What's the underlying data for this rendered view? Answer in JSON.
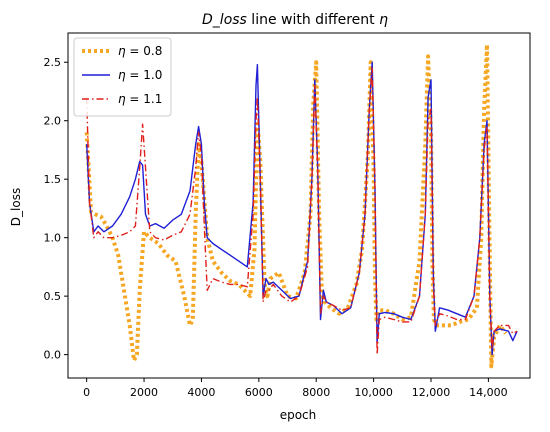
{
  "chart_data": {
    "type": "line",
    "title": "D_loss line with different η",
    "xlabel": "epoch",
    "ylabel": "D_loss",
    "xlim": [
      -650,
      15450
    ],
    "ylim": [
      -0.2,
      2.75
    ],
    "x_ticks": [
      0,
      2000,
      4000,
      6000,
      8000,
      10000,
      12000,
      14000
    ],
    "x_tick_labels": [
      "0",
      "2000",
      "4000",
      "6000",
      "8000",
      "10,000",
      "12,000",
      "14,000"
    ],
    "y_ticks": [
      0.0,
      0.5,
      1.0,
      1.5,
      2.0,
      2.5
    ],
    "y_tick_labels": [
      "0.0",
      "0.5",
      "1.0",
      "1.5",
      "2.0",
      "2.5"
    ],
    "grid": false,
    "legend_position": "upper-left",
    "series": [
      {
        "name": "η = 0.8",
        "legend_prefix": "η",
        "legend_value": "= 0.8",
        "color": "#f5a623",
        "style": "dotted",
        "x": [
          0,
          150,
          300,
          500,
          700,
          900,
          1100,
          1300,
          1500,
          1650,
          1750,
          1850,
          2000,
          2200,
          2500,
          2800,
          3100,
          3400,
          3600,
          3700,
          3800,
          3900,
          4000,
          4200,
          4400,
          4700,
          5000,
          5300,
          5500,
          5700,
          5850,
          5950,
          6050,
          6200,
          6300,
          6400,
          6700,
          7000,
          7300,
          7600,
          7800,
          7900,
          8000,
          8100,
          8200,
          8300,
          8500,
          8800,
          9100,
          9400,
          9600,
          9800,
          9900,
          10000,
          10050,
          10100,
          10200,
          10400,
          10700,
          11000,
          11300,
          11600,
          11800,
          11900,
          12000,
          12050,
          12100,
          12200,
          12400,
          12700,
          13000,
          13300,
          13600,
          13750,
          13850,
          13950,
          14050,
          14100,
          14200,
          14400,
          14600
        ],
        "y": [
          1.9,
          1.22,
          1.2,
          1.18,
          1.1,
          1.0,
          0.85,
          0.55,
          0.25,
          -0.05,
          0.0,
          0.55,
          1.05,
          1.0,
          0.95,
          0.85,
          0.8,
          0.5,
          0.25,
          0.3,
          1.2,
          1.8,
          1.65,
          1.0,
          0.8,
          0.7,
          0.63,
          0.6,
          0.55,
          0.5,
          0.9,
          2.0,
          1.65,
          0.6,
          0.5,
          0.65,
          0.7,
          0.5,
          0.48,
          0.7,
          1.2,
          2.15,
          2.5,
          1.2,
          0.5,
          0.45,
          0.4,
          0.35,
          0.4,
          0.6,
          0.9,
          1.7,
          2.5,
          1.6,
          0.65,
          0.3,
          0.38,
          0.38,
          0.35,
          0.3,
          0.32,
          0.8,
          1.8,
          2.55,
          1.9,
          0.8,
          0.3,
          0.25,
          0.25,
          0.25,
          0.28,
          0.3,
          0.4,
          1.0,
          2.1,
          2.65,
          0.8,
          -0.1,
          0.15,
          0.25,
          0.18
        ]
      },
      {
        "name": "η = 1.0",
        "legend_prefix": "η",
        "legend_value": "= 1.0",
        "color": "#1f1fd6",
        "style": "solid",
        "x": [
          0,
          100,
          250,
          400,
          600,
          900,
          1200,
          1500,
          1700,
          1850,
          1950,
          2050,
          2200,
          2400,
          2700,
          3000,
          3300,
          3600,
          3800,
          3900,
          4000,
          4100,
          4200,
          4400,
          4700,
          5000,
          5300,
          5600,
          5800,
          5900,
          5950,
          6050,
          6150,
          6250,
          6350,
          6500,
          6800,
          7100,
          7400,
          7700,
          7850,
          7950,
          8050,
          8150,
          8250,
          8350,
          8600,
          8900,
          9200,
          9500,
          9700,
          9850,
          9950,
          10050,
          10120,
          10200,
          10400,
          10700,
          11000,
          11300,
          11600,
          11800,
          11900,
          12000,
          12080,
          12150,
          12300,
          12600,
          12900,
          13200,
          13500,
          13700,
          13850,
          13950,
          14050,
          14130,
          14200,
          14400,
          14700,
          14850,
          15000
        ],
        "y": [
          1.8,
          1.3,
          1.05,
          1.1,
          1.05,
          1.1,
          1.2,
          1.35,
          1.5,
          1.65,
          1.62,
          1.2,
          1.1,
          1.12,
          1.08,
          1.15,
          1.2,
          1.4,
          1.8,
          1.95,
          1.8,
          1.3,
          1.0,
          0.95,
          0.9,
          0.85,
          0.8,
          0.75,
          1.3,
          2.3,
          2.48,
          1.5,
          0.5,
          0.65,
          0.6,
          0.62,
          0.55,
          0.48,
          0.5,
          0.8,
          1.5,
          2.35,
          1.6,
          0.3,
          0.55,
          0.45,
          0.42,
          0.35,
          0.4,
          0.7,
          1.2,
          2.1,
          2.5,
          1.4,
          0.1,
          0.35,
          0.36,
          0.35,
          0.32,
          0.3,
          0.5,
          1.2,
          2.2,
          2.35,
          0.7,
          0.2,
          0.4,
          0.38,
          0.35,
          0.32,
          0.5,
          1.0,
          1.8,
          2.0,
          0.5,
          0.0,
          0.2,
          0.22,
          0.2,
          0.12,
          0.2
        ]
      },
      {
        "name": "η = 1.1",
        "legend_prefix": "η",
        "legend_value": "= 1.1",
        "color": "#e0211a",
        "style": "dashdot",
        "x": [
          0,
          100,
          250,
          400,
          600,
          900,
          1200,
          1500,
          1700,
          1850,
          1950,
          2050,
          2200,
          2400,
          2700,
          3000,
          3300,
          3600,
          3800,
          3900,
          4000,
          4100,
          4200,
          4400,
          4700,
          5000,
          5300,
          5600,
          5800,
          5900,
          5950,
          6050,
          6150,
          6250,
          6350,
          6500,
          6800,
          7100,
          7400,
          7700,
          7850,
          7950,
          8050,
          8150,
          8250,
          8350,
          8600,
          8900,
          9200,
          9500,
          9700,
          9850,
          9950,
          10050,
          10120,
          10200,
          10400,
          10700,
          11000,
          11300,
          11600,
          11800,
          11900,
          12000,
          12080,
          12150,
          12300,
          12600,
          12900,
          13200,
          13500,
          13700,
          13850,
          13950,
          14050,
          14130,
          14200,
          14400,
          14700,
          14850,
          15000
        ],
        "y": [
          2.2,
          1.3,
          1.0,
          1.05,
          1.0,
          1.0,
          1.02,
          1.05,
          1.1,
          1.6,
          1.97,
          1.6,
          1.05,
          1.0,
          0.98,
          1.02,
          1.05,
          1.2,
          1.6,
          1.9,
          1.7,
          1.1,
          0.55,
          0.65,
          0.62,
          0.6,
          0.6,
          0.58,
          1.2,
          2.0,
          2.2,
          1.5,
          0.45,
          0.55,
          0.55,
          0.6,
          0.5,
          0.45,
          0.5,
          0.75,
          1.5,
          2.3,
          1.6,
          0.35,
          0.5,
          0.45,
          0.42,
          0.38,
          0.4,
          0.7,
          1.2,
          2.1,
          2.45,
          1.4,
          0.0,
          0.3,
          0.32,
          0.3,
          0.28,
          0.28,
          0.5,
          1.2,
          2.0,
          2.1,
          0.6,
          0.25,
          0.35,
          0.33,
          0.3,
          0.3,
          0.5,
          1.0,
          1.75,
          1.95,
          0.5,
          0.05,
          0.2,
          0.25,
          0.25,
          0.18,
          0.2
        ]
      }
    ]
  }
}
